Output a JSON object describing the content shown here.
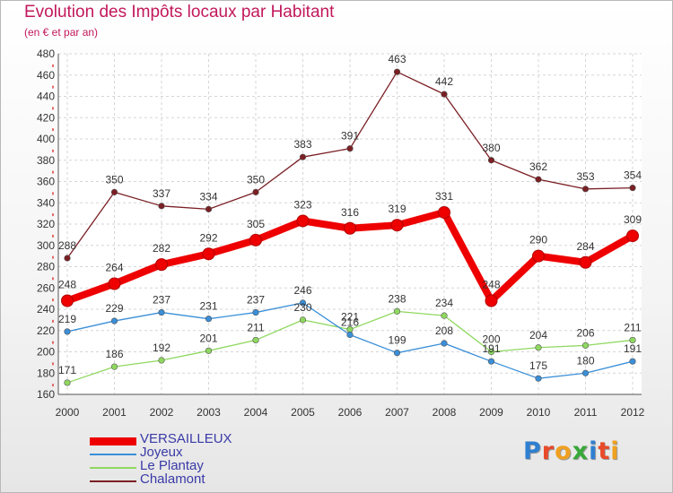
{
  "chart_data": {
    "type": "line",
    "title": "Evolution des Impôts locaux par Habitant",
    "subtitle": "(en € et par an)",
    "x": [
      "2000",
      "2001",
      "2002",
      "2003",
      "2004",
      "2005",
      "2006",
      "2007",
      "2008",
      "2009",
      "2010",
      "2011",
      "2012"
    ],
    "ylim": [
      160,
      480
    ],
    "yticks": [
      160,
      180,
      200,
      220,
      240,
      260,
      280,
      300,
      320,
      340,
      360,
      380,
      400,
      420,
      440,
      460,
      480
    ],
    "grid": true,
    "legend": "bottom-left",
    "series": [
      {
        "name": "VERSAILLEUX",
        "color": "#ee0000",
        "values": [
          248,
          264,
          282,
          292,
          305,
          323,
          316,
          319,
          331,
          248,
          290,
          284,
          309
        ]
      },
      {
        "name": "Joyeux",
        "color": "#3a8fd8",
        "values": [
          219,
          229,
          237,
          231,
          237,
          246,
          216,
          199,
          208,
          191,
          175,
          180,
          191
        ]
      },
      {
        "name": "Le Plantay",
        "color": "#8fd860",
        "values": [
          171,
          186,
          192,
          201,
          211,
          230,
          221,
          238,
          234,
          200,
          204,
          206,
          211
        ]
      },
      {
        "name": "Chalamont",
        "color": "#7a1f24",
        "values": [
          288,
          350,
          337,
          334,
          350,
          383,
          391,
          463,
          442,
          380,
          362,
          353,
          354
        ]
      }
    ]
  },
  "logo": {
    "letters": [
      {
        "char": "P",
        "color": "#2e7fd0"
      },
      {
        "char": "r",
        "color": "#e84a2a"
      },
      {
        "char": "o",
        "color": "#f0a020"
      },
      {
        "char": "x",
        "color": "#38a838"
      },
      {
        "char": "i",
        "color": "#2e7fd0"
      },
      {
        "char": "t",
        "color": "#e84a2a"
      },
      {
        "char": "i",
        "color": "#f0a020"
      }
    ]
  }
}
